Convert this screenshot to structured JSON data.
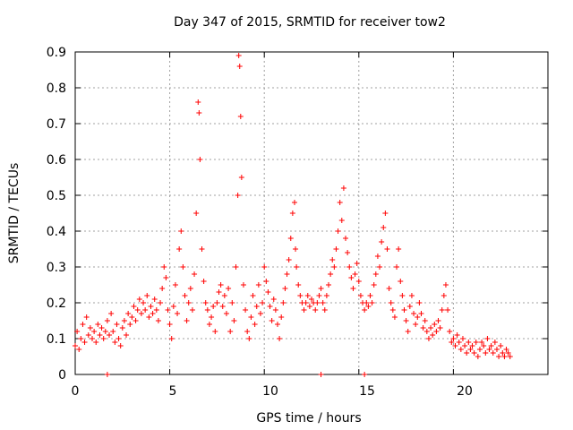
{
  "chart_data": {
    "type": "scatter",
    "title": "Day 347 of 2015, SRMTID for receiver tow2",
    "xlabel": "GPS time / hours",
    "ylabel": "SRMTID / TECUs",
    "xlim": [
      0,
      25
    ],
    "ylim": [
      0,
      0.9
    ],
    "xticks": [
      0,
      5,
      10,
      15,
      20
    ],
    "yticks": [
      0,
      0.1,
      0.2,
      0.3,
      0.4,
      0.5,
      0.6,
      0.7,
      0.8,
      0.9
    ],
    "xtick_labels": [
      "0",
      "5",
      "10",
      "15",
      "20"
    ],
    "ytick_labels": [
      "0",
      "0.1",
      "0.2",
      "0.3",
      "0.4",
      "0.5",
      "0.6",
      "0.7",
      "0.8",
      "0.9"
    ],
    "grid": true,
    "marker": "+",
    "color": "#ff0000",
    "series": [
      {
        "name": "SRMTID",
        "points": [
          [
            0.0,
            0.08
          ],
          [
            0.1,
            0.12
          ],
          [
            0.2,
            0.07
          ],
          [
            0.3,
            0.1
          ],
          [
            0.4,
            0.14
          ],
          [
            0.5,
            0.09
          ],
          [
            0.6,
            0.16
          ],
          [
            0.7,
            0.11
          ],
          [
            0.8,
            0.13
          ],
          [
            0.9,
            0.1
          ],
          [
            1.0,
            0.12
          ],
          [
            1.1,
            0.09
          ],
          [
            1.2,
            0.14
          ],
          [
            1.3,
            0.11
          ],
          [
            1.4,
            0.13
          ],
          [
            1.5,
            0.1
          ],
          [
            1.6,
            0.12
          ],
          [
            1.7,
            0.15
          ],
          [
            1.8,
            0.11
          ],
          [
            1.9,
            0.17
          ],
          [
            2.0,
            0.12
          ],
          [
            2.1,
            0.09
          ],
          [
            2.2,
            0.14
          ],
          [
            2.3,
            0.1
          ],
          [
            2.4,
            0.08
          ],
          [
            2.5,
            0.13
          ],
          [
            2.6,
            0.15
          ],
          [
            2.7,
            0.11
          ],
          [
            2.8,
            0.17
          ],
          [
            2.9,
            0.14
          ],
          [
            3.0,
            0.16
          ],
          [
            3.1,
            0.19
          ],
          [
            3.2,
            0.15
          ],
          [
            3.3,
            0.18
          ],
          [
            3.4,
            0.21
          ],
          [
            3.5,
            0.17
          ],
          [
            3.6,
            0.2
          ],
          [
            3.7,
            0.18
          ],
          [
            3.8,
            0.22
          ],
          [
            3.9,
            0.16
          ],
          [
            4.0,
            0.19
          ],
          [
            4.1,
            0.17
          ],
          [
            4.2,
            0.21
          ],
          [
            4.3,
            0.18
          ],
          [
            4.4,
            0.15
          ],
          [
            4.5,
            0.2
          ],
          [
            4.6,
            0.24
          ],
          [
            4.7,
            0.3
          ],
          [
            4.8,
            0.27
          ],
          [
            4.9,
            0.18
          ],
          [
            5.0,
            0.14
          ],
          [
            5.1,
            0.1
          ],
          [
            5.2,
            0.19
          ],
          [
            5.3,
            0.25
          ],
          [
            5.4,
            0.17
          ],
          [
            5.5,
            0.35
          ],
          [
            5.6,
            0.4
          ],
          [
            5.7,
            0.3
          ],
          [
            5.8,
            0.22
          ],
          [
            5.9,
            0.15
          ],
          [
            6.0,
            0.2
          ],
          [
            6.1,
            0.24
          ],
          [
            6.2,
            0.18
          ],
          [
            6.3,
            0.28
          ],
          [
            6.4,
            0.45
          ],
          [
            6.5,
            0.76
          ],
          [
            6.55,
            0.73
          ],
          [
            6.6,
            0.6
          ],
          [
            6.7,
            0.35
          ],
          [
            6.8,
            0.26
          ],
          [
            6.9,
            0.2
          ],
          [
            7.0,
            0.18
          ],
          [
            7.1,
            0.14
          ],
          [
            7.2,
            0.16
          ],
          [
            7.3,
            0.19
          ],
          [
            7.4,
            0.12
          ],
          [
            7.5,
            0.2
          ],
          [
            7.6,
            0.23
          ],
          [
            7.7,
            0.25
          ],
          [
            7.8,
            0.19
          ],
          [
            7.9,
            0.22
          ],
          [
            8.0,
            0.17
          ],
          [
            8.1,
            0.24
          ],
          [
            8.2,
            0.12
          ],
          [
            8.3,
            0.2
          ],
          [
            8.4,
            0.15
          ],
          [
            8.5,
            0.3
          ],
          [
            8.6,
            0.5
          ],
          [
            8.65,
            0.89
          ],
          [
            8.7,
            0.86
          ],
          [
            8.75,
            0.72
          ],
          [
            8.8,
            0.55
          ],
          [
            8.9,
            0.25
          ],
          [
            9.0,
            0.18
          ],
          [
            9.1,
            0.12
          ],
          [
            9.2,
            0.1
          ],
          [
            9.3,
            0.16
          ],
          [
            9.4,
            0.22
          ],
          [
            9.5,
            0.14
          ],
          [
            9.6,
            0.19
          ],
          [
            9.7,
            0.25
          ],
          [
            9.8,
            0.17
          ],
          [
            9.9,
            0.2
          ],
          [
            10.0,
            0.3
          ],
          [
            10.1,
            0.26
          ],
          [
            10.2,
            0.23
          ],
          [
            10.3,
            0.19
          ],
          [
            10.4,
            0.15
          ],
          [
            10.5,
            0.21
          ],
          [
            10.6,
            0.18
          ],
          [
            10.7,
            0.14
          ],
          [
            10.8,
            0.1
          ],
          [
            10.9,
            0.16
          ],
          [
            11.0,
            0.2
          ],
          [
            11.1,
            0.24
          ],
          [
            11.2,
            0.28
          ],
          [
            11.3,
            0.32
          ],
          [
            11.4,
            0.38
          ],
          [
            11.5,
            0.45
          ],
          [
            11.6,
            0.48
          ],
          [
            11.65,
            0.35
          ],
          [
            11.7,
            0.3
          ],
          [
            11.8,
            0.25
          ],
          [
            11.9,
            0.22
          ],
          [
            12.0,
            0.2
          ],
          [
            12.1,
            0.18
          ],
          [
            12.2,
            0.2
          ],
          [
            12.3,
            0.22
          ],
          [
            12.4,
            0.19
          ],
          [
            12.5,
            0.21
          ],
          [
            12.6,
            0.2
          ],
          [
            12.7,
            0.18
          ],
          [
            12.8,
            0.2
          ],
          [
            12.9,
            0.22
          ],
          [
            13.0,
            0.24
          ],
          [
            13.1,
            0.2
          ],
          [
            13.2,
            0.18
          ],
          [
            13.3,
            0.22
          ],
          [
            13.4,
            0.25
          ],
          [
            13.5,
            0.28
          ],
          [
            13.6,
            0.32
          ],
          [
            13.7,
            0.3
          ],
          [
            13.8,
            0.35
          ],
          [
            13.9,
            0.4
          ],
          [
            14.0,
            0.48
          ],
          [
            14.1,
            0.43
          ],
          [
            14.2,
            0.52
          ],
          [
            14.3,
            0.38
          ],
          [
            14.4,
            0.34
          ],
          [
            14.5,
            0.3
          ],
          [
            14.6,
            0.27
          ],
          [
            14.7,
            0.24
          ],
          [
            14.8,
            0.28
          ],
          [
            14.9,
            0.31
          ],
          [
            15.0,
            0.26
          ],
          [
            15.1,
            0.22
          ],
          [
            15.2,
            0.2
          ],
          [
            15.3,
            0.18
          ],
          [
            15.4,
            0.2
          ],
          [
            15.5,
            0.19
          ],
          [
            15.6,
            0.22
          ],
          [
            15.7,
            0.2
          ],
          [
            15.8,
            0.25
          ],
          [
            15.9,
            0.28
          ],
          [
            16.0,
            0.33
          ],
          [
            16.1,
            0.3
          ],
          [
            16.2,
            0.37
          ],
          [
            16.3,
            0.41
          ],
          [
            16.4,
            0.45
          ],
          [
            16.5,
            0.35
          ],
          [
            16.6,
            0.24
          ],
          [
            16.7,
            0.2
          ],
          [
            16.8,
            0.18
          ],
          [
            16.9,
            0.16
          ],
          [
            17.0,
            0.3
          ],
          [
            17.1,
            0.35
          ],
          [
            17.2,
            0.26
          ],
          [
            17.3,
            0.22
          ],
          [
            17.4,
            0.18
          ],
          [
            17.5,
            0.15
          ],
          [
            17.6,
            0.12
          ],
          [
            17.7,
            0.19
          ],
          [
            17.8,
            0.22
          ],
          [
            17.9,
            0.17
          ],
          [
            18.0,
            0.14
          ],
          [
            18.1,
            0.16
          ],
          [
            18.2,
            0.2
          ],
          [
            18.3,
            0.17
          ],
          [
            18.4,
            0.13
          ],
          [
            18.5,
            0.15
          ],
          [
            18.6,
            0.12
          ],
          [
            18.7,
            0.1
          ],
          [
            18.8,
            0.13
          ],
          [
            18.9,
            0.11
          ],
          [
            19.0,
            0.14
          ],
          [
            19.1,
            0.12
          ],
          [
            19.2,
            0.15
          ],
          [
            19.3,
            0.13
          ],
          [
            19.4,
            0.18
          ],
          [
            19.5,
            0.22
          ],
          [
            19.6,
            0.25
          ],
          [
            19.7,
            0.18
          ],
          [
            19.8,
            0.12
          ],
          [
            19.9,
            0.09
          ],
          [
            20.0,
            0.1
          ],
          [
            20.1,
            0.08
          ],
          [
            20.2,
            0.11
          ],
          [
            20.3,
            0.09
          ],
          [
            20.4,
            0.07
          ],
          [
            20.5,
            0.1
          ],
          [
            20.6,
            0.08
          ],
          [
            20.7,
            0.06
          ],
          [
            20.8,
            0.09
          ],
          [
            20.9,
            0.07
          ],
          [
            21.0,
            0.08
          ],
          [
            21.1,
            0.06
          ],
          [
            21.2,
            0.09
          ],
          [
            21.3,
            0.05
          ],
          [
            21.4,
            0.07
          ],
          [
            21.5,
            0.09
          ],
          [
            21.6,
            0.08
          ],
          [
            21.7,
            0.06
          ],
          [
            21.8,
            0.1
          ],
          [
            21.9,
            0.07
          ],
          [
            22.0,
            0.08
          ],
          [
            22.1,
            0.06
          ],
          [
            22.2,
            0.09
          ],
          [
            22.3,
            0.07
          ],
          [
            22.4,
            0.05
          ],
          [
            22.5,
            0.08
          ],
          [
            22.6,
            0.06
          ],
          [
            22.7,
            0.05
          ],
          [
            22.8,
            0.07
          ],
          [
            22.9,
            0.06
          ],
          [
            23.0,
            0.05
          ],
          [
            1.7,
            0.0
          ],
          [
            13.0,
            0.0
          ],
          [
            15.3,
            0.0
          ]
        ]
      }
    ]
  }
}
